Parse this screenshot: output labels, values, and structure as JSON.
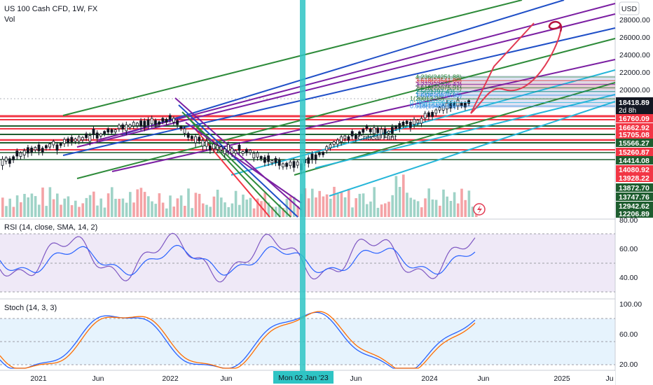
{
  "header": {
    "symbol": "US 100 Cash CFD, 1W, FX",
    "volume_label": "Vol"
  },
  "currency_button": "USD",
  "price_axis": {
    "ticks": [
      "28000.00",
      "26000.00",
      "24000.00",
      "22000.00",
      "20000.00"
    ],
    "last_price": "18418.89",
    "countdown": "2d 8h",
    "tags": [
      {
        "value": "16760.09",
        "color": "#f23645"
      },
      {
        "value": "16662.92",
        "color": "#f23645"
      },
      {
        "value": "15705.08",
        "color": "#f23645"
      },
      {
        "value": "15566.27",
        "color": "#1e5d2f"
      },
      {
        "value": "15260.87",
        "color": "#f23645"
      },
      {
        "value": "14414.08",
        "color": "#1e5d2f"
      },
      {
        "value": "14080.92",
        "color": "#f23645"
      },
      {
        "value": "13928.22",
        "color": "#f23645"
      },
      {
        "value": "13872.70",
        "color": "#1e5d2f"
      },
      {
        "value": "13747.76",
        "color": "#1e5d2f"
      },
      {
        "value": "12942.62",
        "color": "#1e5d2f"
      },
      {
        "value": "12206.89",
        "color": "#1e5d2f"
      }
    ]
  },
  "rsi": {
    "label": "RSI (14, close, SMA, 14, 2)",
    "ticks": [
      "80.00",
      "60.00",
      "40.00"
    ]
  },
  "stoch": {
    "label": "Stoch (14, 3, 3)",
    "ticks": [
      "100.00",
      "60.00",
      "20.00"
    ]
  },
  "time_axis": {
    "labels": [
      "2021",
      "Jun",
      "2022",
      "Jun",
      "Jun",
      "2024",
      "Jun",
      "2025",
      "Ju"
    ],
    "crosshair_label": "Mon 02 Jan '23"
  },
  "annotations": {
    "critical_label": "Critical Hint",
    "fib_labels": [
      "4.236(24251.88)",
      "3.618(23541.80)",
      "3.272(22936.43)",
      "2.618(22075.91)",
      "2.5(21797.43)",
      "1.618(20870.35)",
      "1(20013.26)",
      "0.786(19706.55)",
      "0.618(19405.53)"
    ]
  },
  "colors": {
    "support": "#1e5d2f",
    "resistance": "#f23645",
    "crosshair": "#2ec4c4",
    "trend_green": "#2e8b3a",
    "trend_blue": "#1f4fc7",
    "trend_purple": "#7b1fa2",
    "trend_cyan": "#26b6d9",
    "arrow": "#e23a52",
    "candle_up": "#131722",
    "rsi_line": "#7e57c2",
    "rsi_sma": "#2962ff",
    "stoch_k": "#2962ff",
    "stoch_d": "#ff6d00"
  }
}
